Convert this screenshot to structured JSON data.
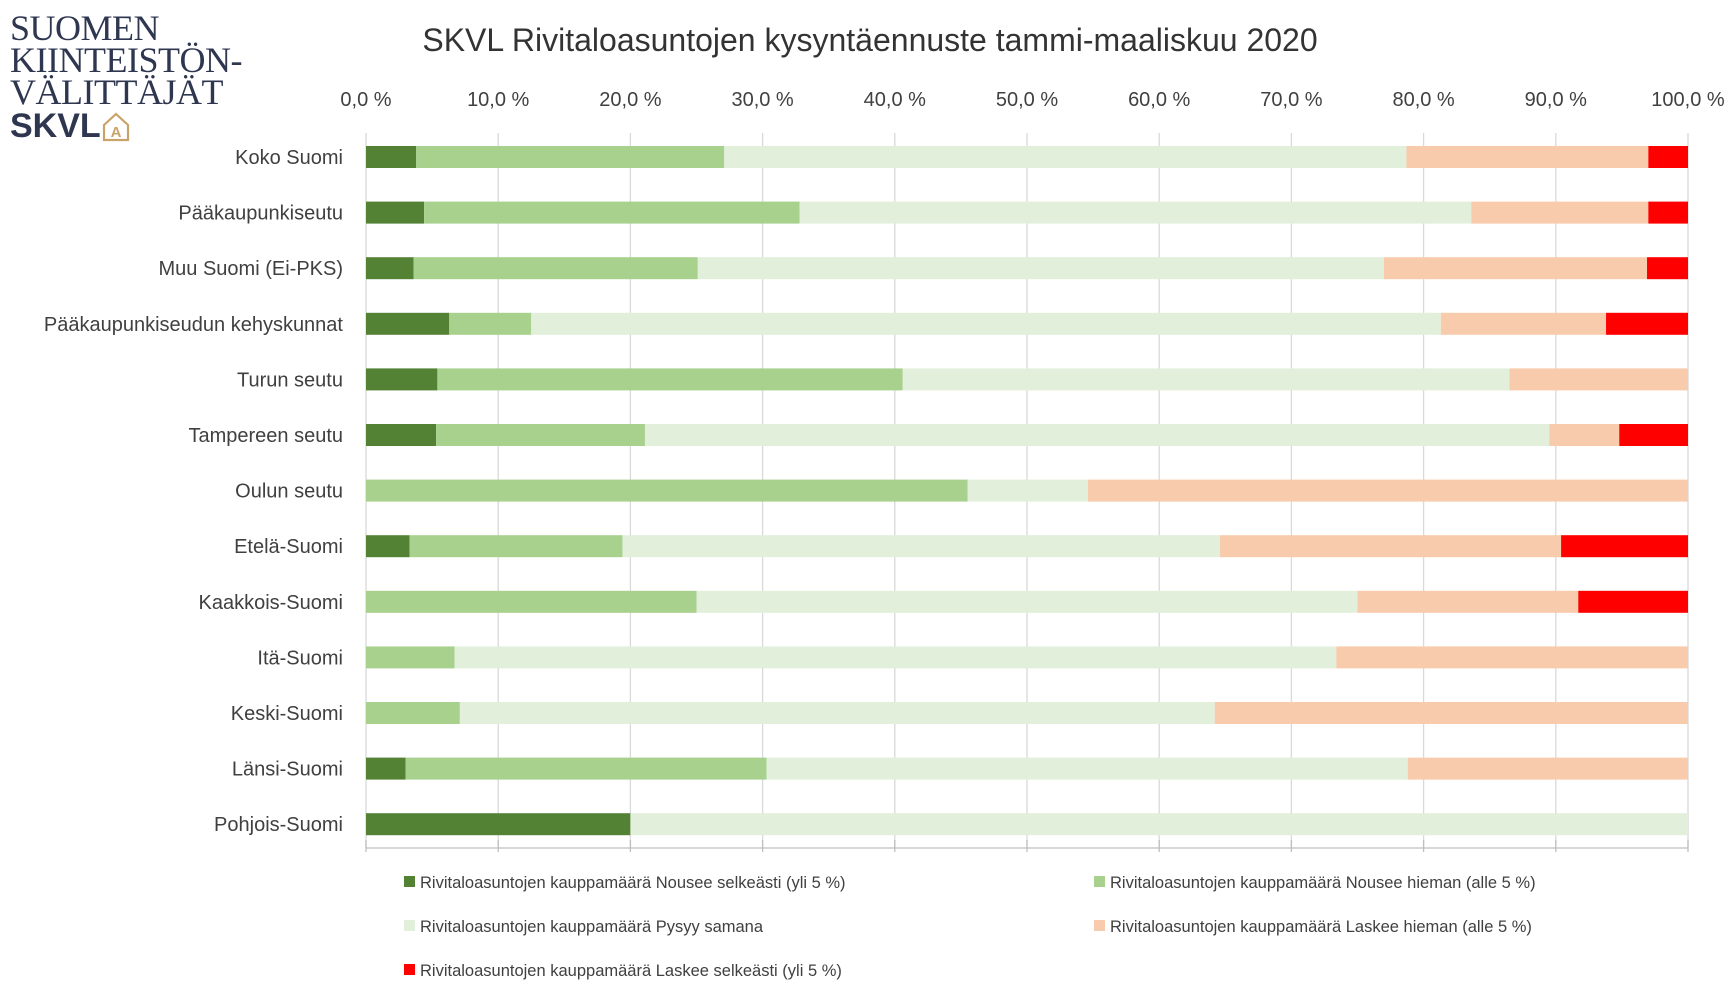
{
  "logo": {
    "line1": "SUOMEN",
    "line2": "KIINTEISTÖN-",
    "line3": "VÄLITTÄJÄT",
    "brand": "SKVL",
    "house_letter": "A"
  },
  "chart_data": {
    "type": "bar",
    "orientation": "horizontal",
    "stacked": true,
    "title": "SKVL Rivitaloasuntojen kysyntäennuste tammi-maaliskuu 2020",
    "xlim": [
      0,
      100
    ],
    "x_ticks": [
      "0,0 %",
      "10,0 %",
      "20,0 %",
      "30,0 %",
      "40,0 %",
      "50,0 %",
      "60,0 %",
      "70,0 %",
      "80,0 %",
      "90,0 %",
      "100,0 %"
    ],
    "x_axis_position": "top",
    "grid": true,
    "legend_position": "bottom",
    "categories": [
      "Koko Suomi",
      "Pääkaupunkiseutu",
      "Muu Suomi (Ei-PKS)",
      "Pääkaupunkiseudun kehyskunnat",
      "Turun seutu",
      "Tampereen seutu",
      "Oulun seutu",
      "Etelä-Suomi",
      "Kaakkois-Suomi",
      "Itä-Suomi",
      "Keski-Suomi",
      "Länsi-Suomi",
      "Pohjois-Suomi"
    ],
    "series": [
      {
        "name": "Rivitaloasuntojen kauppamäärä Nousee selkeästi (yli 5 %)",
        "color": "#548235",
        "values": [
          3.8,
          4.4,
          3.6,
          6.3,
          5.4,
          5.3,
          0,
          3.3,
          0,
          0,
          0,
          3.0,
          20.0
        ]
      },
      {
        "name": "Rivitaloasuntojen kauppamäärä Nousee hieman (alle 5 %)",
        "color": "#a9d18e",
        "values": [
          23.3,
          28.4,
          21.5,
          6.2,
          35.2,
          15.8,
          45.5,
          16.1,
          25.0,
          6.7,
          7.1,
          27.3,
          0
        ]
      },
      {
        "name": "Rivitaloasuntojen kauppamäärä Pysyy samana",
        "color": "#e2efda",
        "values": [
          51.6,
          50.8,
          51.9,
          68.8,
          45.9,
          68.4,
          9.1,
          45.2,
          50.0,
          66.7,
          57.1,
          48.5,
          80.0
        ]
      },
      {
        "name": "Rivitaloasuntojen kauppamäärä Laskee hieman (alle 5 %)",
        "color": "#f8cbad",
        "values": [
          18.3,
          13.4,
          19.9,
          12.5,
          13.5,
          5.3,
          45.4,
          25.8,
          16.7,
          26.6,
          35.8,
          21.2,
          0
        ]
      },
      {
        "name": "Rivitaloasuntojen kauppamäärä Laskee selkeästi (yli 5 %)",
        "color": "#ff0000",
        "values": [
          3.0,
          3.0,
          3.1,
          6.2,
          0,
          5.2,
          0,
          9.6,
          8.3,
          0,
          0,
          0,
          0
        ]
      }
    ]
  }
}
